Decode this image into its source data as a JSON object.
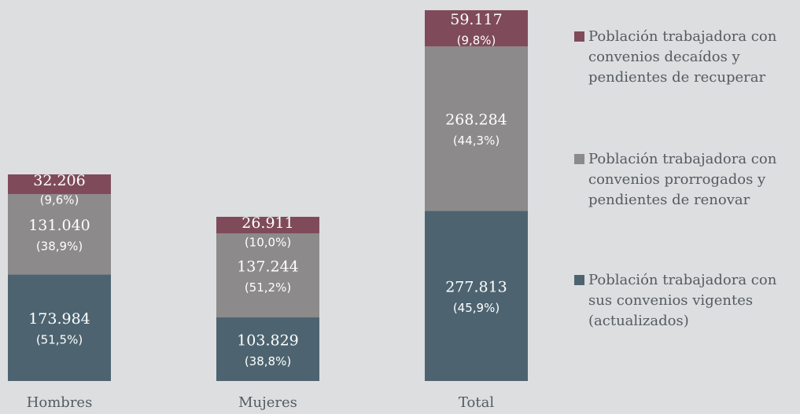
{
  "chart_data": {
    "type": "stacked-bar",
    "categories": [
      "Hombres",
      "Mujeres",
      "Total"
    ],
    "series": [
      {
        "name": "Población trabajadora con sus convenios vigentes (actualizados)",
        "color": "#4d6470",
        "values": [
          173984,
          103829,
          277813
        ],
        "value_labels": [
          "173.984",
          "103.829",
          "277.813"
        ],
        "share_labels": [
          "(51,5%)",
          "(38,8%)",
          "(45,9%)"
        ]
      },
      {
        "name": "Población trabajadora con convenios prorrogados  y pendientes de renovar",
        "color": "#8c8a8a",
        "values": [
          131040,
          137244,
          268284
        ],
        "value_labels": [
          "131.040",
          "137.244",
          "268.284"
        ],
        "share_labels": [
          "(38,9%)",
          "(51,2%)",
          "(44,3%)"
        ]
      },
      {
        "name": "Población trabajadora con convenios decaídos y pendientes de recuperar",
        "color": "#7f4b5a",
        "values": [
          32206,
          26911,
          59117
        ],
        "value_labels": [
          "32.206",
          "26.911",
          "59.117"
        ],
        "share_labels": [
          "(9,6%)",
          "(10,0%)",
          "(9,8%)"
        ]
      }
    ]
  }
}
